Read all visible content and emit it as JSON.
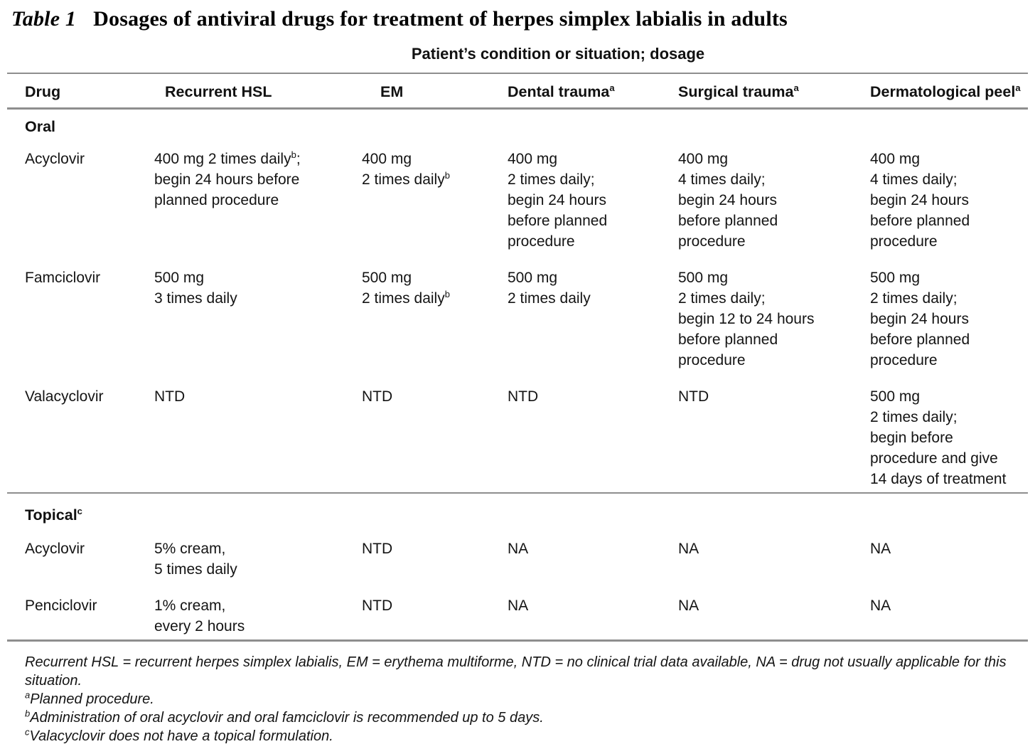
{
  "title": {
    "label": "Table 1",
    "text": "Dosages of antiviral drugs for treatment of herpes simplex labialis in adults"
  },
  "spanning_header": "Patient’s condition or situation; dosage",
  "columns": [
    "Drug",
    "Recurrent HSL",
    "EM",
    "Dental trauma^a",
    "Surgical trauma^a",
    "Dermatological peel^a"
  ],
  "sections": [
    {
      "label": "Oral",
      "rows": [
        {
          "drug": "Acyclovir",
          "cells": [
            [
              "400 mg 2 times daily^b;",
              "begin 24 hours before",
              "planned procedure"
            ],
            [
              "400 mg",
              "2 times daily^b"
            ],
            [
              "400 mg",
              "2 times daily;",
              "begin 24 hours",
              "before planned",
              "procedure"
            ],
            [
              "400 mg",
              "4 times daily;",
              "begin 24 hours",
              "before planned",
              "procedure"
            ],
            [
              "400 mg",
              "4 times daily;",
              "begin 24 hours",
              "before planned",
              "procedure"
            ]
          ]
        },
        {
          "drug": "Famciclovir",
          "cells": [
            [
              "500 mg",
              "3 times daily"
            ],
            [
              "500 mg",
              "2 times daily^b"
            ],
            [
              "500 mg",
              "2 times daily"
            ],
            [
              "500 mg",
              "2 times daily;",
              "begin 12 to 24 hours",
              "before planned",
              "procedure"
            ],
            [
              "500 mg",
              "2 times daily;",
              "begin 24 hours",
              "before planned",
              "procedure"
            ]
          ]
        },
        {
          "drug": "Valacyclovir",
          "cells": [
            [
              "NTD"
            ],
            [
              "NTD"
            ],
            [
              "NTD"
            ],
            [
              "NTD"
            ],
            [
              "500 mg",
              "2 times daily;",
              "begin before",
              "procedure and give",
              "14 days of treatment"
            ]
          ]
        }
      ]
    },
    {
      "label": "Topical^c",
      "rows": [
        {
          "drug": "Acyclovir",
          "cells": [
            [
              "5% cream,",
              "5 times daily"
            ],
            [
              "NTD"
            ],
            [
              "NA"
            ],
            [
              "NA"
            ],
            [
              "NA"
            ]
          ]
        },
        {
          "drug": "Penciclovir",
          "cells": [
            [
              "1% cream,",
              "every 2 hours"
            ],
            [
              "NTD"
            ],
            [
              "NA"
            ],
            [
              "NA"
            ],
            [
              "NA"
            ]
          ]
        }
      ]
    }
  ],
  "footnotes": [
    "Recurrent HSL = recurrent herpes simplex labialis, EM = erythema multiforme, NTD = no clinical trial data available, NA = drug not usually applicable for this situation.",
    "^aPlanned procedure.",
    "^bAdministration of oral acyclovir and oral famciclovir is recommended up to 5 days.",
    "^cValacyclovir does not have a topical formulation."
  ],
  "colors": {
    "rule": "#8e8e8e",
    "text": "#141414",
    "background": "#ffffff"
  }
}
